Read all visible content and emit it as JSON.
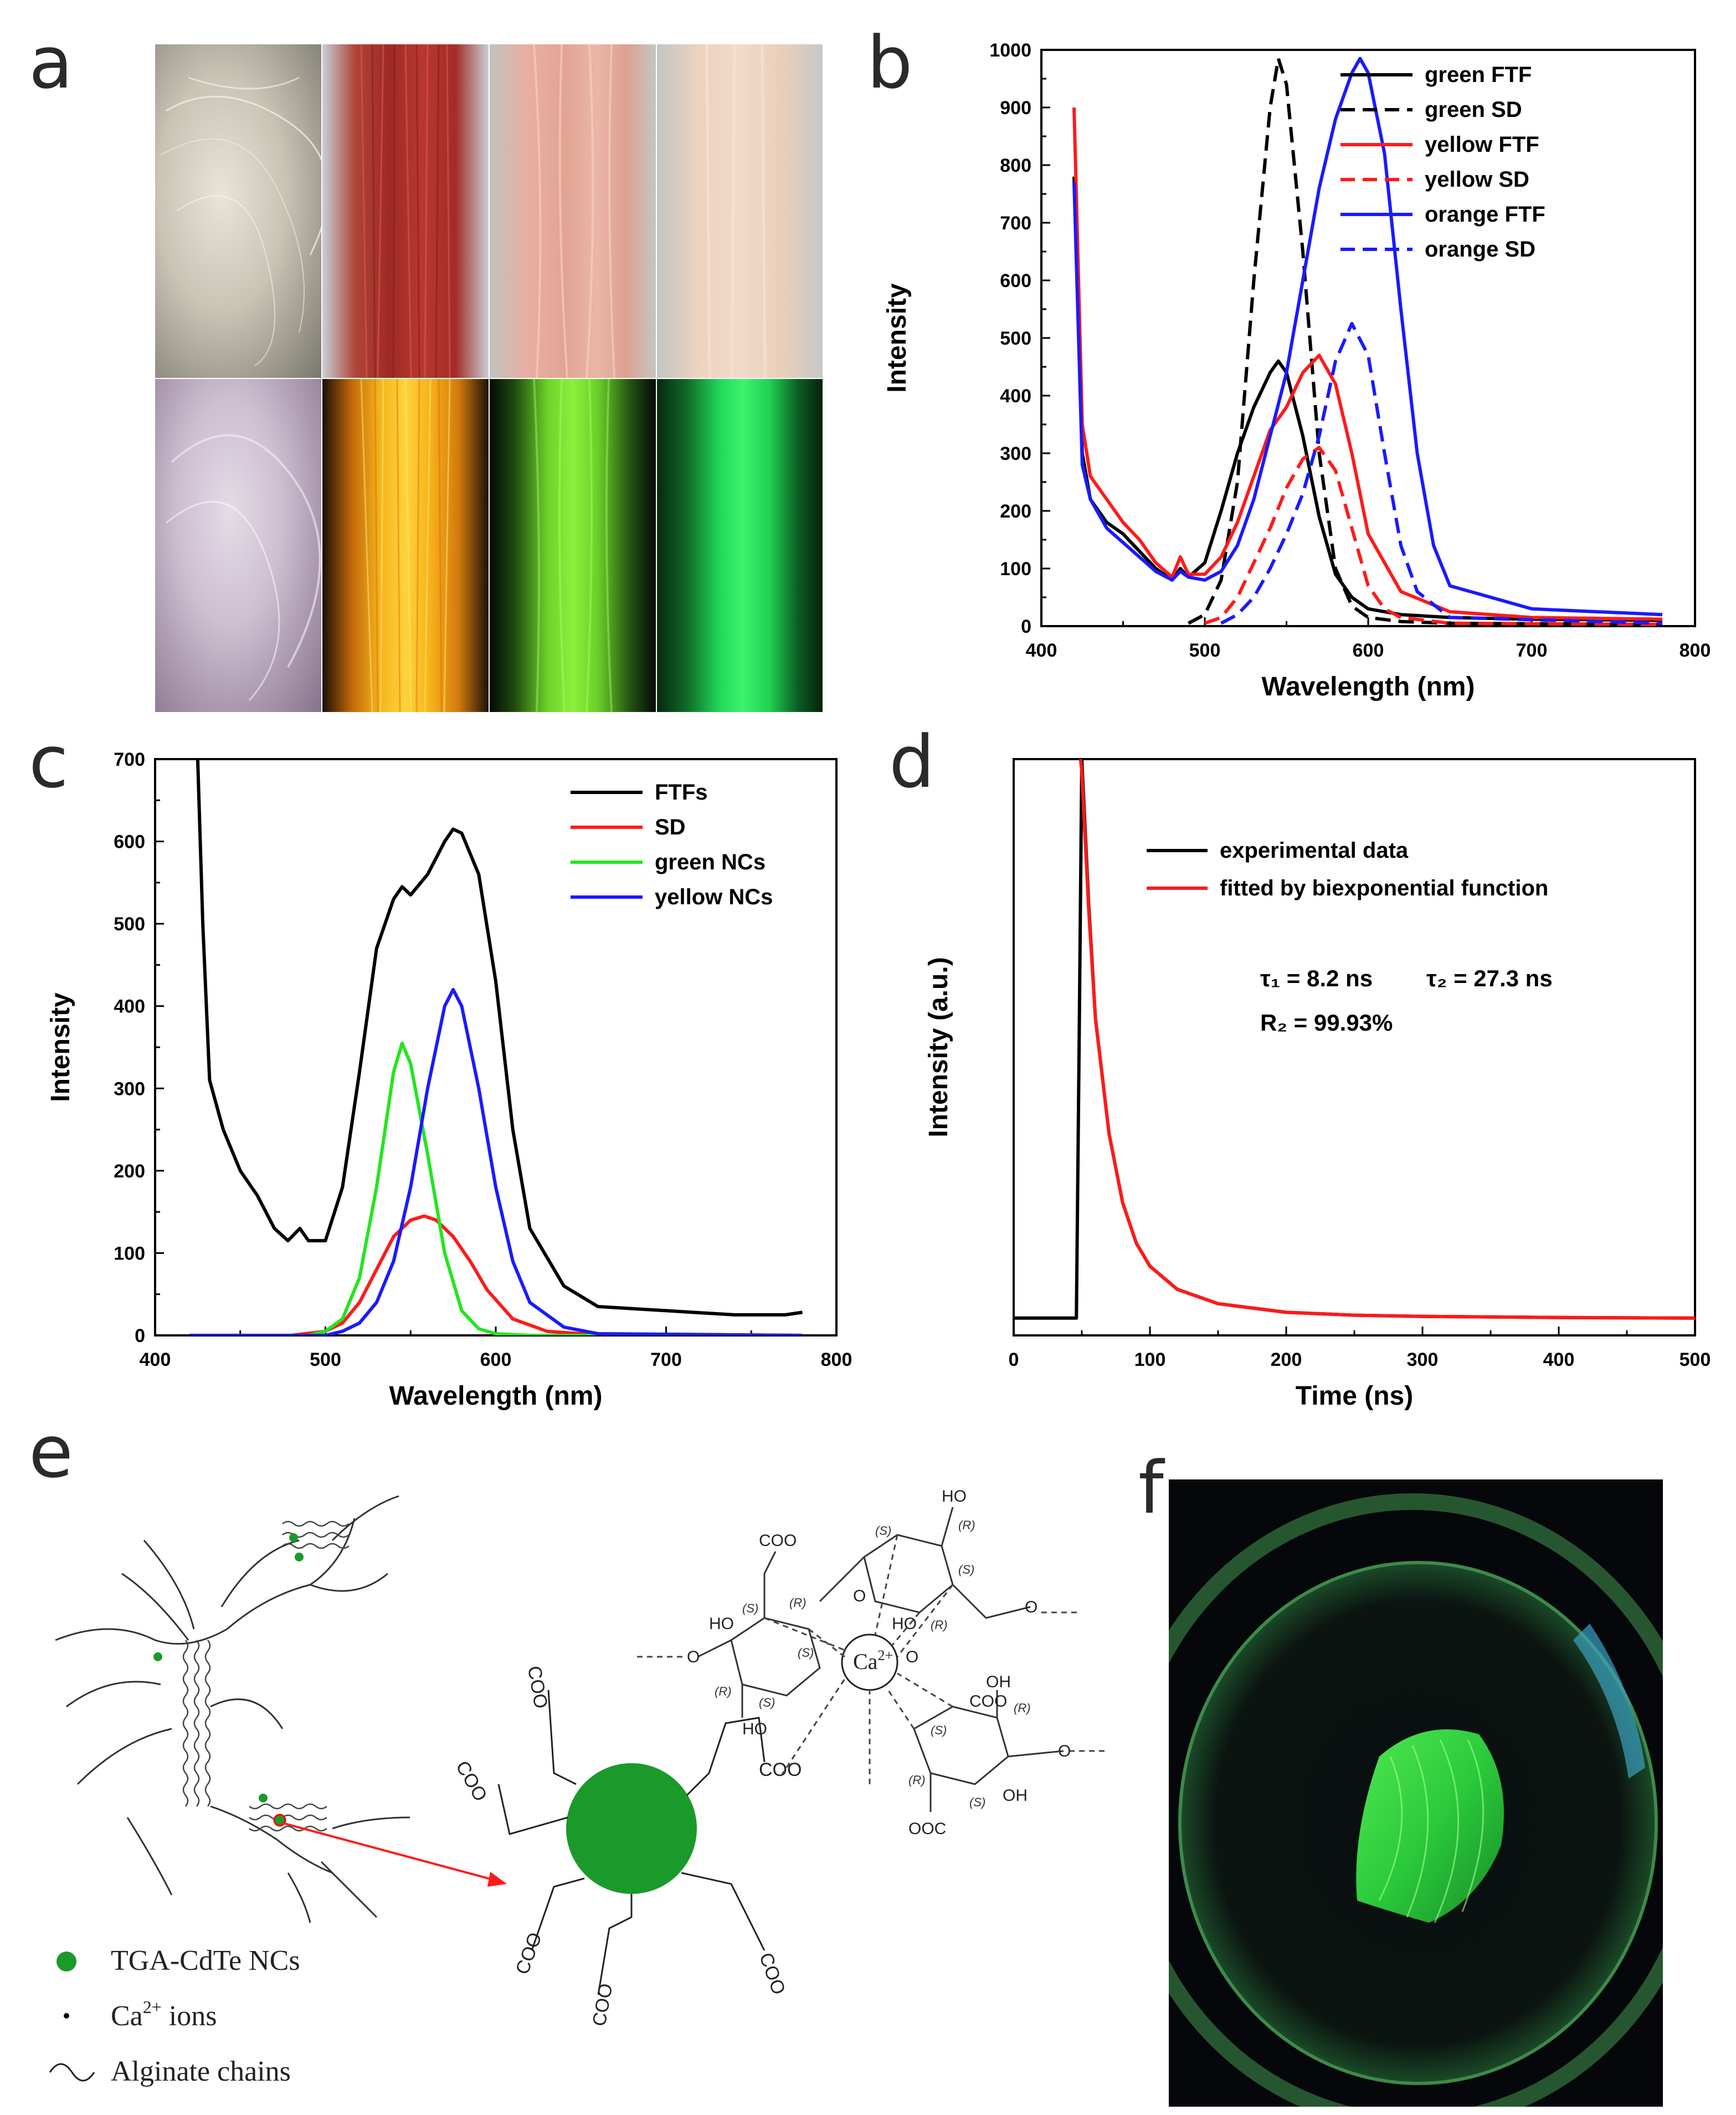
{
  "panels": {
    "a": {
      "letter": "a"
    },
    "b": {
      "letter": "b"
    },
    "c": {
      "letter": "c"
    },
    "d": {
      "letter": "d"
    },
    "e": {
      "letter": "e"
    },
    "f": {
      "letter": "f"
    }
  },
  "colors": {
    "black": "#000000",
    "red": "#ff1a1a",
    "blue": "#1a1aff",
    "green": "#22e61f",
    "nc_green": "#1a9a2a"
  },
  "chart_data": [
    {
      "id": "b",
      "type": "line",
      "xlabel": "Wavelength (nm)",
      "ylabel": "Intensity",
      "xlim": [
        400,
        800
      ],
      "ylim": [
        0,
        1000
      ],
      "xticks": [
        400,
        500,
        600,
        700,
        800
      ],
      "yticks": [
        0,
        100,
        200,
        300,
        400,
        500,
        600,
        700,
        800,
        900,
        1000
      ],
      "legend_position": "top-right",
      "series": [
        {
          "name": "green FTF",
          "color": "#000000",
          "dash": false,
          "x": [
            420,
            425,
            430,
            440,
            450,
            460,
            470,
            480,
            485,
            490,
            500,
            510,
            520,
            530,
            540,
            545,
            550,
            560,
            570,
            580,
            590,
            600,
            620,
            650,
            700,
            780
          ],
          "y": [
            780,
            300,
            220,
            180,
            160,
            130,
            100,
            80,
            100,
            85,
            110,
            200,
            300,
            380,
            440,
            460,
            440,
            330,
            190,
            90,
            50,
            30,
            20,
            15,
            12,
            10
          ]
        },
        {
          "name": "green SD",
          "color": "#000000",
          "dash": true,
          "x": [
            490,
            500,
            510,
            520,
            530,
            540,
            545,
            550,
            560,
            570,
            580,
            590,
            600,
            620,
            650,
            780
          ],
          "y": [
            5,
            20,
            80,
            250,
            600,
            900,
            985,
            940,
            650,
            300,
            100,
            35,
            15,
            8,
            5,
            3
          ]
        },
        {
          "name": "yellow FTF",
          "color": "#ff1a1a",
          "dash": false,
          "x": [
            420,
            425,
            430,
            440,
            450,
            460,
            470,
            480,
            485,
            490,
            500,
            510,
            520,
            530,
            540,
            550,
            560,
            570,
            580,
            590,
            600,
            620,
            650,
            700,
            780
          ],
          "y": [
            900,
            350,
            260,
            220,
            180,
            150,
            110,
            85,
            120,
            90,
            90,
            120,
            180,
            260,
            340,
            380,
            440,
            470,
            420,
            300,
            160,
            60,
            25,
            15,
            12
          ]
        },
        {
          "name": "yellow SD",
          "color": "#ff1a1a",
          "dash": true,
          "x": [
            500,
            510,
            520,
            530,
            540,
            550,
            560,
            570,
            580,
            590,
            600,
            610,
            620,
            650,
            780
          ],
          "y": [
            5,
            15,
            50,
            110,
            170,
            240,
            290,
            310,
            270,
            170,
            70,
            30,
            15,
            5,
            3
          ]
        },
        {
          "name": "orange FTF",
          "color": "#1a1aff",
          "dash": false,
          "x": [
            420,
            425,
            430,
            440,
            450,
            460,
            470,
            480,
            485,
            490,
            500,
            510,
            520,
            530,
            540,
            550,
            560,
            570,
            580,
            590,
            595,
            600,
            610,
            620,
            630,
            640,
            650,
            700,
            780
          ],
          "y": [
            770,
            280,
            220,
            170,
            145,
            120,
            95,
            80,
            95,
            85,
            80,
            95,
            140,
            220,
            330,
            440,
            600,
            760,
            880,
            960,
            985,
            960,
            820,
            550,
            300,
            140,
            70,
            30,
            20
          ]
        },
        {
          "name": "orange SD",
          "color": "#1a1aff",
          "dash": true,
          "x": [
            510,
            520,
            530,
            540,
            550,
            560,
            570,
            580,
            590,
            600,
            610,
            620,
            630,
            650,
            780
          ],
          "y": [
            5,
            20,
            50,
            100,
            160,
            230,
            330,
            460,
            525,
            470,
            300,
            140,
            60,
            15,
            5
          ]
        }
      ]
    },
    {
      "id": "c",
      "type": "line",
      "xlabel": "Wavelength (nm)",
      "ylabel": "Intensity",
      "xlim": [
        400,
        800
      ],
      "ylim": [
        0,
        700
      ],
      "xticks": [
        400,
        500,
        600,
        700,
        800
      ],
      "yticks": [
        0,
        100,
        200,
        300,
        400,
        500,
        600,
        700
      ],
      "legend_position": "top-right",
      "series": [
        {
          "name": "FTFs",
          "color": "#000000",
          "x": [
            425,
            428,
            432,
            440,
            450,
            460,
            470,
            478,
            485,
            490,
            500,
            510,
            520,
            530,
            540,
            545,
            550,
            560,
            570,
            575,
            580,
            590,
            600,
            610,
            620,
            640,
            660,
            700,
            740,
            770,
            780
          ],
          "y": [
            700,
            500,
            310,
            250,
            200,
            170,
            130,
            115,
            130,
            115,
            115,
            180,
            320,
            470,
            530,
            545,
            535,
            560,
            600,
            615,
            610,
            560,
            430,
            250,
            130,
            60,
            35,
            30,
            25,
            25,
            28
          ]
        },
        {
          "name": "SD",
          "color": "#ff1a1a",
          "x": [
            420,
            480,
            500,
            510,
            520,
            530,
            540,
            550,
            558,
            565,
            575,
            585,
            595,
            610,
            630,
            650,
            780
          ],
          "y": [
            0,
            0,
            5,
            15,
            40,
            80,
            120,
            140,
            145,
            140,
            120,
            90,
            55,
            20,
            5,
            2,
            0
          ]
        },
        {
          "name": "green NCs",
          "color": "#22e61f",
          "x": [
            420,
            490,
            500,
            510,
            520,
            530,
            540,
            545,
            550,
            560,
            570,
            580,
            590,
            600,
            620,
            780
          ],
          "y": [
            0,
            0,
            5,
            20,
            70,
            180,
            320,
            355,
            330,
            220,
            100,
            30,
            8,
            2,
            0,
            0
          ]
        },
        {
          "name": "yellow NCs",
          "color": "#1a1aff",
          "x": [
            420,
            500,
            510,
            520,
            530,
            540,
            550,
            560,
            570,
            575,
            580,
            590,
            600,
            610,
            620,
            640,
            660,
            780
          ],
          "y": [
            0,
            0,
            5,
            15,
            40,
            90,
            180,
            300,
            400,
            420,
            400,
            300,
            180,
            90,
            40,
            10,
            2,
            0
          ]
        }
      ]
    },
    {
      "id": "d",
      "type": "line",
      "xlabel": "Time (ns)",
      "ylabel": "Intensity (a.u.)",
      "xlim": [
        0,
        500
      ],
      "ylim": [
        0,
        1
      ],
      "xticks": [
        0,
        100,
        200,
        300,
        400,
        500
      ],
      "legend_position": "top-right",
      "annotations": [
        "τ₁ = 8.2 ns",
        "τ₂ = 27.3 ns",
        "R₂ = 99.93%"
      ],
      "series": [
        {
          "name": "experimental data",
          "color": "#000000",
          "x": [
            0,
            46,
            48,
            50,
            55,
            60,
            70,
            80,
            90,
            100,
            120,
            150,
            200,
            250,
            300,
            400,
            500
          ],
          "y": [
            0.03,
            0.03,
            0.5,
            1.0,
            0.75,
            0.55,
            0.35,
            0.23,
            0.16,
            0.12,
            0.08,
            0.055,
            0.04,
            0.035,
            0.033,
            0.031,
            0.03
          ]
        },
        {
          "name": "fitted by biexponential function",
          "color": "#ff1a1a",
          "x": [
            49,
            50,
            55,
            60,
            70,
            80,
            90,
            100,
            120,
            150,
            200,
            250,
            300,
            400,
            500
          ],
          "y": [
            1.0,
            0.98,
            0.74,
            0.55,
            0.35,
            0.23,
            0.16,
            0.12,
            0.08,
            0.055,
            0.04,
            0.035,
            0.033,
            0.031,
            0.03
          ]
        }
      ]
    }
  ],
  "schematic_e": {
    "legend": {
      "nc_label": "TGA-CdTe NCs",
      "ca_label_prefix": "Ca",
      "ca_label_sup": "2+",
      "ca_label_suffix": " ions",
      "chain_label": "Alginate chains"
    },
    "ca_center_text": "Ca",
    "ca_center_sup": "2+",
    "coo_label": "COO",
    "coo_label_top": "COO",
    "oh_label": "OH",
    "ho_label": "HO",
    "o_label": "O",
    "s_label": "(S)",
    "r_label": "(R)",
    "ooc_label": "OOC"
  }
}
